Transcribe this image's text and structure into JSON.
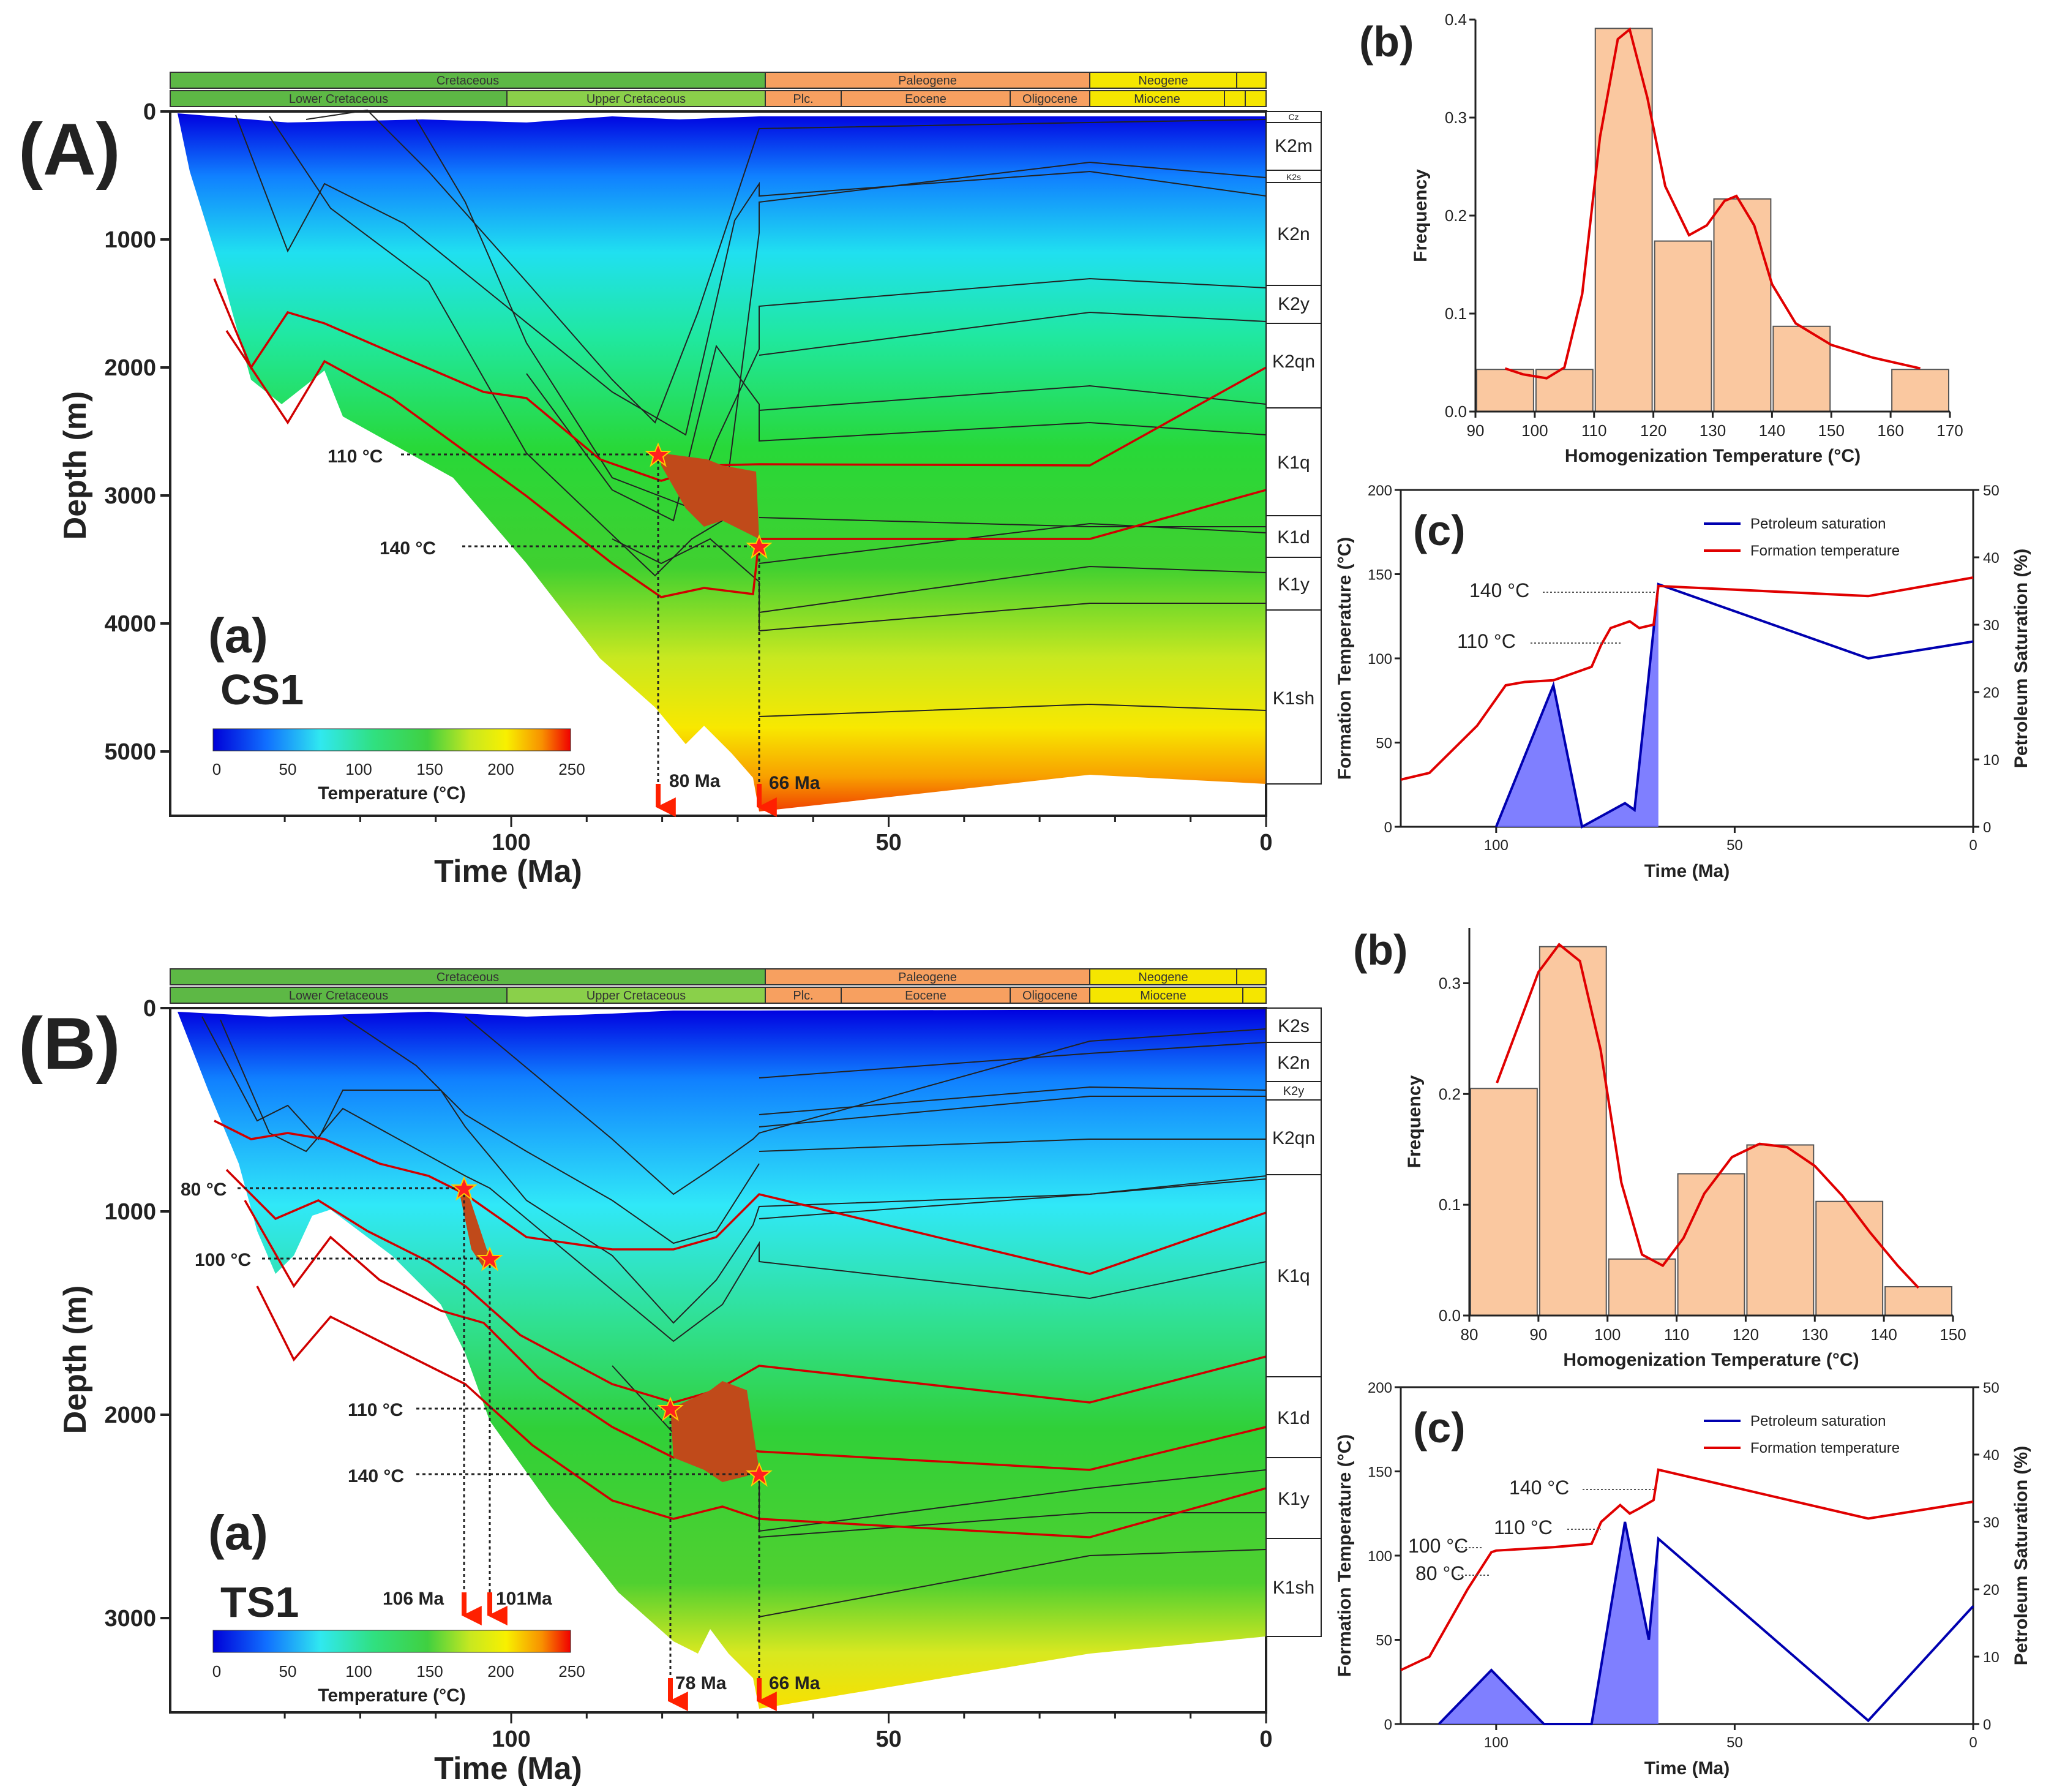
{
  "colors": {
    "orange_bar": "#fac8a0",
    "kde_red": "#e00000",
    "sat_blue": "#0000b0",
    "temp_red": "#e00000",
    "strat_green": "#5db845",
    "strat_lightgreen": "#8ad04a",
    "strat_orange": "#f7a060",
    "strat_yellow": "#f5e600",
    "charge_brown": "#c04a1a",
    "star_red": "#ff2020"
  },
  "panelA": {
    "label": "(A)",
    "sub_label": "(a)",
    "well": "CS1",
    "strat": {
      "periods": [
        "Cretaceous",
        "Paleogene",
        "Neogene"
      ],
      "epochs": [
        "Lower Cretaceous",
        "Upper Cretaceous",
        "Plc.",
        "Eocene",
        "Oligocene",
        "Miocene"
      ]
    },
    "y_ticks": [
      "0",
      "1000",
      "2000",
      "3000",
      "4000",
      "5000"
    ],
    "x_ticks": [
      "100",
      "50",
      "0"
    ],
    "xlabel": "Time (Ma)",
    "ylabel": "Depth (m)",
    "temp_labels": [
      "110 °C",
      "140 °C"
    ],
    "age_labels": [
      "80 Ma",
      "66 Ma"
    ],
    "formations": [
      "Cz",
      "K2m",
      "K2s",
      "K2n",
      "K2y",
      "K2qn",
      "K1q",
      "K1d",
      "K1y",
      "K1sh"
    ],
    "colorbar": {
      "ticks": [
        "0",
        "50",
        "100",
        "150",
        "200",
        "250"
      ],
      "label": "Temperature (°C)"
    }
  },
  "panelB": {
    "label": "(B)",
    "sub_label": "(a)",
    "well": "TS1",
    "strat": {
      "periods": [
        "Cretaceous",
        "Paleogene",
        "Neogene"
      ],
      "epochs": [
        "Lower Cretaceous",
        "Upper Cretaceous",
        "Plc.",
        "Eocene",
        "Oligocene",
        "Miocene"
      ]
    },
    "y_ticks": [
      "0",
      "1000",
      "2000",
      "3000"
    ],
    "x_ticks": [
      "100",
      "50",
      "0"
    ],
    "xlabel": "Time (Ma)",
    "ylabel": "Depth (m)",
    "temp_labels": [
      "80 °C",
      "100 °C",
      "110 °C",
      "140 °C"
    ],
    "age_labels": [
      "106 Ma",
      "101Ma",
      "78 Ma",
      "66 Ma"
    ],
    "formations": [
      "K2s",
      "K2n",
      "K2y",
      "K2qn",
      "K1q",
      "K1d",
      "K1y",
      "K1sh"
    ],
    "colorbar": {
      "ticks": [
        "0",
        "50",
        "100",
        "150",
        "200",
        "250"
      ],
      "label": "Temperature (°C)"
    }
  },
  "chart_data": [
    {
      "id": "A_b",
      "type": "bar",
      "panel_label": "(b)",
      "xlabel": "Homogenization Temperature (°C)",
      "ylabel": "Frequency",
      "xlim": [
        90,
        170
      ],
      "ylim": [
        0,
        0.4
      ],
      "x_ticks": [
        90,
        100,
        110,
        120,
        130,
        140,
        150,
        160,
        170
      ],
      "y_ticks": [
        0.0,
        0.1,
        0.2,
        0.3,
        0.4
      ],
      "bins": [
        [
          90,
          100
        ],
        [
          100,
          110
        ],
        [
          110,
          120
        ],
        [
          120,
          130
        ],
        [
          130,
          140
        ],
        [
          140,
          150
        ],
        [
          150,
          160
        ],
        [
          160,
          170
        ]
      ],
      "values": [
        0.043,
        0.043,
        0.391,
        0.174,
        0.217,
        0.087,
        0.0,
        0.043
      ],
      "kde": [
        [
          95,
          0.044
        ],
        [
          98,
          0.038
        ],
        [
          102,
          0.034
        ],
        [
          105,
          0.045
        ],
        [
          108,
          0.12
        ],
        [
          111,
          0.28
        ],
        [
          114,
          0.38
        ],
        [
          116,
          0.39
        ],
        [
          119,
          0.32
        ],
        [
          122,
          0.23
        ],
        [
          126,
          0.18
        ],
        [
          129,
          0.19
        ],
        [
          132,
          0.215
        ],
        [
          134,
          0.22
        ],
        [
          137,
          0.19
        ],
        [
          140,
          0.13
        ],
        [
          144,
          0.09
        ],
        [
          150,
          0.068
        ],
        [
          157,
          0.055
        ],
        [
          165,
          0.044
        ]
      ]
    },
    {
      "id": "A_c",
      "type": "line",
      "panel_label": "(c)",
      "xlabel": "Time (Ma)",
      "ylabel_left": "Formation Temperature (°C)",
      "ylabel_right": "Petroleum Saturation (%)",
      "xlim": [
        120,
        0
      ],
      "ylim_left": [
        0,
        200
      ],
      "ylim_right": [
        0,
        50
      ],
      "x_ticks": [
        100,
        50,
        0
      ],
      "y_ticks_left": [
        0,
        50,
        100,
        150,
        200
      ],
      "y_ticks_right": [
        0,
        10,
        20,
        30,
        40,
        50
      ],
      "annotations": [
        "140 °C",
        "110 °C"
      ],
      "series": [
        {
          "name": "Petroleum saturation",
          "axis": "right",
          "x": [
            100,
            88,
            82,
            73,
            71,
            66,
            22,
            0
          ],
          "y": [
            0,
            21,
            0,
            3.5,
            2.5,
            36,
            25,
            27.5
          ]
        },
        {
          "name": "Formation temperature",
          "axis": "left",
          "x": [
            120,
            114,
            104,
            98,
            94,
            88,
            80,
            78,
            76,
            72,
            70,
            67,
            66,
            22,
            0
          ],
          "y": [
            28,
            32,
            60,
            84,
            86,
            87,
            95,
            108,
            118,
            122,
            118,
            120,
            143,
            137,
            148
          ]
        }
      ]
    },
    {
      "id": "B_b",
      "type": "bar",
      "panel_label": "(b)",
      "xlabel": "Homogenization Temperature (°C)",
      "ylabel": "Frequency",
      "xlim": [
        80,
        150
      ],
      "ylim": [
        0,
        0.35
      ],
      "x_ticks": [
        80,
        90,
        100,
        110,
        120,
        130,
        140,
        150
      ],
      "y_ticks": [
        0.0,
        0.1,
        0.2,
        0.3
      ],
      "bins": [
        [
          80,
          90
        ],
        [
          90,
          100
        ],
        [
          100,
          110
        ],
        [
          110,
          120
        ],
        [
          120,
          130
        ],
        [
          130,
          140
        ],
        [
          140,
          150
        ]
      ],
      "values": [
        0.205,
        0.333,
        0.051,
        0.128,
        0.154,
        0.103,
        0.026
      ],
      "kde": [
        [
          84,
          0.21
        ],
        [
          87,
          0.26
        ],
        [
          90,
          0.31
        ],
        [
          93,
          0.335
        ],
        [
          96,
          0.32
        ],
        [
          99,
          0.24
        ],
        [
          102,
          0.12
        ],
        [
          105,
          0.055
        ],
        [
          108,
          0.045
        ],
        [
          111,
          0.07
        ],
        [
          114,
          0.11
        ],
        [
          118,
          0.143
        ],
        [
          122,
          0.155
        ],
        [
          126,
          0.152
        ],
        [
          130,
          0.135
        ],
        [
          134,
          0.108
        ],
        [
          138,
          0.075
        ],
        [
          142,
          0.045
        ],
        [
          145,
          0.025
        ]
      ]
    },
    {
      "id": "B_c",
      "type": "line",
      "panel_label": "(c)",
      "xlabel": "Time (Ma)",
      "ylabel_left": "Formation Temperature (°C)",
      "ylabel_right": "Petroleum Saturation (%)",
      "xlim": [
        120,
        0
      ],
      "ylim_left": [
        0,
        200
      ],
      "ylim_right": [
        0,
        50
      ],
      "x_ticks": [
        100,
        50,
        0
      ],
      "y_ticks_left": [
        0,
        50,
        100,
        150,
        200
      ],
      "y_ticks_right": [
        0,
        10,
        20,
        30,
        40,
        50
      ],
      "annotations": [
        "140 °C",
        "110 °C",
        "100 °C",
        "80 °C"
      ],
      "series": [
        {
          "name": "Petroleum saturation",
          "axis": "right",
          "x": [
            112,
            101,
            90,
            80,
            73,
            68,
            66,
            22,
            0
          ],
          "y": [
            0,
            8,
            0,
            0,
            30,
            12.5,
            27.5,
            0.5,
            17.5
          ]
        },
        {
          "name": "Formation temperature",
          "axis": "left",
          "x": [
            120,
            114,
            106,
            101,
            100,
            88,
            80,
            78,
            74,
            72,
            70,
            67,
            66,
            22,
            0
          ],
          "y": [
            32,
            40,
            80,
            102,
            103,
            105,
            107,
            120,
            130,
            125,
            128,
            133,
            151,
            122,
            132
          ]
        }
      ]
    }
  ]
}
